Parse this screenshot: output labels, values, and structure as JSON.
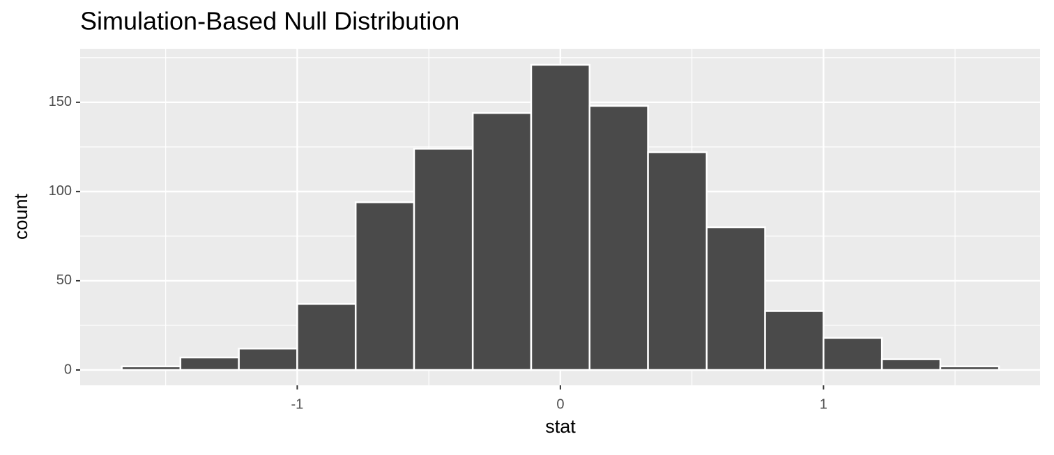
{
  "chart_data": {
    "type": "histogram",
    "title": "Simulation-Based Null Distribution",
    "x_label": "stat",
    "y_label": "count",
    "bins": [
      -1.667,
      -1.444,
      -1.222,
      -1,
      -0.778,
      -0.556,
      -0.333,
      -0.111,
      0.111,
      0.333,
      0.556,
      0.778,
      1,
      1.222,
      1.444,
      1.667
    ],
    "values": [
      2,
      7,
      12,
      37,
      94,
      124,
      144,
      171,
      148,
      122,
      80,
      33,
      18,
      6,
      2
    ],
    "color": "#4a4a4a",
    "edge_color": "#ffffff",
    "xlim": [
      -1.825,
      1.823
    ],
    "ylim": [
      -8.6,
      180
    ],
    "xticks": [
      -1,
      0,
      1
    ],
    "yticks": [
      0,
      50,
      100,
      150
    ],
    "grid": true,
    "minor_grid": true
  }
}
